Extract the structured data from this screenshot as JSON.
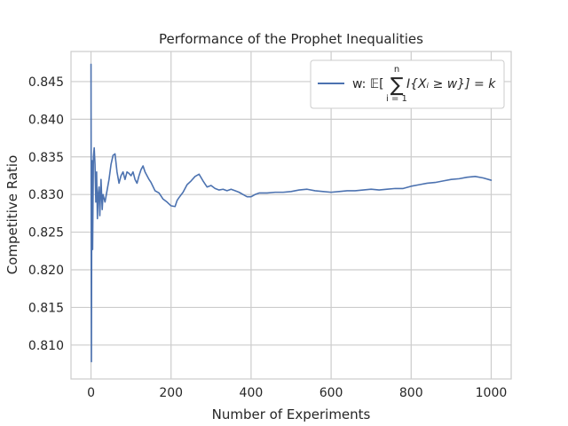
{
  "chart_data": {
    "type": "line",
    "title": "Performance of the Prophet Inequalities",
    "xlabel": "Number of Experiments",
    "ylabel": "Competitive Ratio",
    "xlim": [
      -50,
      1050
    ],
    "ylim": [
      0.8055,
      0.849
    ],
    "xticks": [
      0,
      200,
      400,
      600,
      800,
      1000
    ],
    "xtick_labels": [
      "0",
      "200",
      "400",
      "600",
      "800",
      "1000"
    ],
    "yticks": [
      0.81,
      0.815,
      0.82,
      0.825,
      0.83,
      0.835,
      0.84,
      0.845
    ],
    "ytick_labels": [
      "0.810",
      "0.815",
      "0.820",
      "0.825",
      "0.830",
      "0.835",
      "0.840",
      "0.845"
    ],
    "grid": true,
    "legend_position": "upper-right",
    "colors": {
      "series": "#4c72b0",
      "grid": "#cccccc",
      "axes_edge": "#cccccc"
    },
    "series": [
      {
        "name": "w: 𝔼[ ∑ I{Xᵢ ≥ w}] = k (i = 1 … n)",
        "x": [
          0,
          1,
          2,
          3,
          4,
          5,
          6,
          8,
          10,
          12,
          14,
          16,
          18,
          20,
          22,
          25,
          28,
          30,
          35,
          40,
          45,
          50,
          55,
          60,
          65,
          70,
          75,
          80,
          85,
          90,
          95,
          100,
          105,
          110,
          115,
          120,
          125,
          130,
          135,
          140,
          145,
          150,
          160,
          170,
          180,
          190,
          200,
          210,
          215,
          220,
          230,
          240,
          250,
          260,
          270,
          280,
          290,
          300,
          310,
          320,
          330,
          340,
          350,
          360,
          370,
          380,
          390,
          400,
          410,
          420,
          440,
          460,
          480,
          500,
          520,
          540,
          560,
          580,
          600,
          620,
          640,
          660,
          680,
          700,
          720,
          740,
          760,
          780,
          800,
          820,
          840,
          860,
          880,
          900,
          920,
          940,
          960,
          980,
          1000
        ],
        "values": [
          0.8473,
          0.8078,
          0.832,
          0.8345,
          0.8227,
          0.829,
          0.835,
          0.8362,
          0.834,
          0.829,
          0.833,
          0.8268,
          0.83,
          0.831,
          0.8272,
          0.832,
          0.828,
          0.83,
          0.829,
          0.8305,
          0.832,
          0.834,
          0.8352,
          0.8354,
          0.833,
          0.8315,
          0.8325,
          0.833,
          0.832,
          0.833,
          0.8328,
          0.8325,
          0.833,
          0.832,
          0.8315,
          0.8325,
          0.8333,
          0.8338,
          0.833,
          0.8325,
          0.832,
          0.8316,
          0.8305,
          0.8302,
          0.8294,
          0.829,
          0.8285,
          0.8284,
          0.8292,
          0.8296,
          0.8303,
          0.8313,
          0.8318,
          0.8324,
          0.8327,
          0.8318,
          0.831,
          0.8312,
          0.8308,
          0.8306,
          0.8307,
          0.8305,
          0.8307,
          0.8305,
          0.8303,
          0.83,
          0.8297,
          0.8297,
          0.83,
          0.8302,
          0.8302,
          0.8303,
          0.8303,
          0.8304,
          0.8306,
          0.8307,
          0.8305,
          0.8304,
          0.8303,
          0.8304,
          0.8305,
          0.8305,
          0.8306,
          0.8307,
          0.8306,
          0.8307,
          0.8308,
          0.8308,
          0.8311,
          0.8313,
          0.8315,
          0.8316,
          0.8318,
          0.832,
          0.8321,
          0.8323,
          0.8324,
          0.8322,
          0.8319
        ]
      }
    ]
  }
}
